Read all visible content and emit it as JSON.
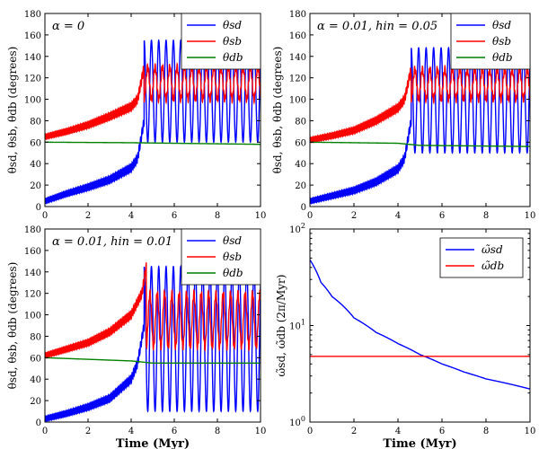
{
  "chart_data": [
    {
      "type": "line",
      "annotation": "α = 0",
      "xlabel": "",
      "ylabel": "θsd, θsb, θdb (degrees)",
      "xlim": [
        0,
        10
      ],
      "ylim": [
        0,
        180
      ],
      "xticks": [
        "0",
        "2",
        "4",
        "6",
        "8",
        "10"
      ],
      "yticks": [
        "0",
        "20",
        "40",
        "60",
        "80",
        "100",
        "120",
        "140",
        "160",
        "180"
      ],
      "legend": [
        {
          "label": "θsd",
          "color": "#0000ff"
        },
        {
          "label": "θsb",
          "color": "#ff0000"
        },
        {
          "label": "θdb",
          "color": "#008000"
        }
      ],
      "series": [
        {
          "name": "θsd",
          "color": "#0000ff",
          "model": "sd",
          "baseline": [
            [
              0,
              5
            ],
            [
              1,
              12
            ],
            [
              2,
              18
            ],
            [
              3,
              25
            ],
            [
              4,
              36
            ],
            [
              4.3,
              45
            ],
            [
              4.6,
              80
            ]
          ],
          "oscillation": {
            "low": 60,
            "high": 155,
            "period": 0.34
          }
        },
        {
          "name": "θsb",
          "color": "#ff0000",
          "model": "sb",
          "baseline": [
            [
              0,
              65
            ],
            [
              1,
              70
            ],
            [
              2,
              76
            ],
            [
              3,
              84
            ],
            [
              4,
              93
            ],
            [
              4.3,
              100
            ],
            [
              4.6,
              130
            ]
          ],
          "oscillation": {
            "low": 100,
            "high": 130,
            "period": 0.34
          }
        },
        {
          "name": "θdb",
          "color": "#008000",
          "model": "db",
          "values": [
            [
              0,
              60
            ],
            [
              4,
              59.5
            ],
            [
              10,
              58
            ]
          ]
        }
      ]
    },
    {
      "type": "line",
      "annotation": "α = 0.01, hin = 0.05",
      "xlabel": "",
      "ylabel": "θsd, θsb, θdb (degrees)",
      "xlim": [
        0,
        10
      ],
      "ylim": [
        0,
        180
      ],
      "xticks": [
        "0",
        "2",
        "4",
        "6",
        "8",
        "10"
      ],
      "yticks": [
        "0",
        "20",
        "40",
        "60",
        "80",
        "100",
        "120",
        "140",
        "160",
        "180"
      ],
      "legend": [
        {
          "label": "θsd",
          "color": "#0000ff"
        },
        {
          "label": "θsb",
          "color": "#ff0000"
        },
        {
          "label": "θdb",
          "color": "#008000"
        }
      ],
      "series": [
        {
          "name": "θsd",
          "color": "#0000ff",
          "model": "sd",
          "baseline": [
            [
              0,
              5
            ],
            [
              1,
              10
            ],
            [
              2,
              15
            ],
            [
              3,
              23
            ],
            [
              4,
              35
            ],
            [
              4.3,
              45
            ],
            [
              4.6,
              80
            ]
          ],
          "oscillation": {
            "low": 50,
            "high": 148,
            "period": 0.34
          }
        },
        {
          "name": "θsb",
          "color": "#ff0000",
          "model": "sb",
          "baseline": [
            [
              0,
              62
            ],
            [
              1,
              66
            ],
            [
              2,
              71
            ],
            [
              3,
              80
            ],
            [
              4,
              92
            ],
            [
              4.3,
              100
            ],
            [
              4.6,
              128
            ]
          ],
          "oscillation": {
            "low": 100,
            "high": 128,
            "period": 0.34
          }
        },
        {
          "name": "θdb",
          "color": "#008000",
          "model": "db",
          "values": [
            [
              0,
              60
            ],
            [
              4,
              59
            ],
            [
              5,
              57
            ],
            [
              10,
              56
            ]
          ]
        }
      ]
    },
    {
      "type": "line",
      "annotation": "α = 0.01, hin = 0.01",
      "xlabel": "Time (Myr)",
      "ylabel": "θsd, θsb, θdb (degrees)",
      "xlim": [
        0,
        10
      ],
      "ylim": [
        0,
        180
      ],
      "xticks": [
        "0",
        "2",
        "4",
        "6",
        "8",
        "10"
      ],
      "yticks": [
        "0",
        "20",
        "40",
        "60",
        "80",
        "100",
        "120",
        "140",
        "160",
        "180"
      ],
      "legend": [
        {
          "label": "θsd",
          "color": "#0000ff"
        },
        {
          "label": "θsb",
          "color": "#ff0000"
        },
        {
          "label": "θdb",
          "color": "#008000"
        }
      ],
      "series": [
        {
          "name": "θsd",
          "color": "#0000ff",
          "model": "sd",
          "baseline": [
            [
              0,
              3
            ],
            [
              1,
              8
            ],
            [
              2,
              14
            ],
            [
              3,
              22
            ],
            [
              4,
              40
            ],
            [
              4.3,
              55
            ],
            [
              4.6,
              90
            ]
          ],
          "oscillation": {
            "low": 10,
            "high": 145,
            "period": 0.34
          }
        },
        {
          "name": "θsb",
          "color": "#ff0000",
          "model": "sb",
          "baseline": [
            [
              0,
              62
            ],
            [
              1,
              68
            ],
            [
              2,
              74
            ],
            [
              3,
              84
            ],
            [
              4,
              100
            ],
            [
              4.5,
              120
            ],
            [
              4.7,
              145
            ]
          ],
          "oscillation": {
            "low": 70,
            "high": 120,
            "period": 0.34
          }
        },
        {
          "name": "θdb",
          "color": "#008000",
          "model": "db",
          "values": [
            [
              0,
              60
            ],
            [
              4,
              57
            ],
            [
              5,
              55
            ],
            [
              10,
              55
            ]
          ]
        }
      ]
    },
    {
      "type": "line",
      "annotation": "",
      "xlabel": "Time (Myr)",
      "ylabel": "ω̃sd, ω̃db (2π/Myr)",
      "xlim": [
        0,
        10
      ],
      "ylim": [
        1,
        100
      ],
      "yscale": "log",
      "xticks": [
        "0",
        "2",
        "4",
        "6",
        "8",
        "10"
      ],
      "yticks": [
        {
          "base": "10",
          "exp": "0"
        },
        {
          "base": "10",
          "exp": "1"
        },
        {
          "base": "10",
          "exp": "2"
        }
      ],
      "legend": [
        {
          "label": "ω̃sd",
          "color": "#0000ff"
        },
        {
          "label": "ω̃db",
          "color": "#ff0000"
        }
      ],
      "series": [
        {
          "name": "ω̃sd",
          "color": "#0000ff",
          "values": [
            [
              0,
              48
            ],
            [
              0.5,
              28
            ],
            [
              1,
              20
            ],
            [
              2,
              12
            ],
            [
              3,
              8.5
            ],
            [
              4,
              6.5
            ],
            [
              5,
              5
            ],
            [
              6,
              4
            ],
            [
              7,
              3.3
            ],
            [
              8,
              2.8
            ],
            [
              9,
              2.5
            ],
            [
              10,
              2.2
            ]
          ]
        },
        {
          "name": "ω̃db",
          "color": "#ff0000",
          "values": [
            [
              0,
              4.8
            ],
            [
              10,
              4.8
            ]
          ]
        }
      ]
    }
  ]
}
